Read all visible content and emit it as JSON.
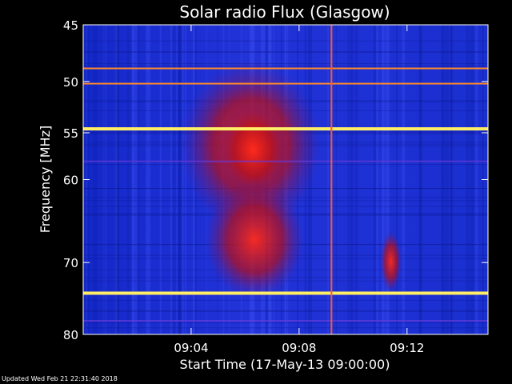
{
  "chart_data": {
    "type": "heatmap",
    "title": "Solar radio Flux (Glasgow)",
    "xlabel": "Start Time (17-May-13 09:00:00)",
    "ylabel": "Frequency [MHz]",
    "x_range_minutes": [
      0,
      15
    ],
    "y_range_mhz": [
      45,
      80
    ],
    "x_ticks": [
      {
        "minute": 4,
        "label": "09:04"
      },
      {
        "minute": 8,
        "label": "09:08"
      },
      {
        "minute": 12,
        "label": "09:12"
      }
    ],
    "y_ticks": [
      {
        "mhz": 45,
        "label": "45"
      },
      {
        "mhz": 50,
        "label": "50"
      },
      {
        "mhz": 55,
        "label": "55"
      },
      {
        "mhz": 60,
        "label": "60"
      },
      {
        "mhz": 70,
        "label": "70"
      },
      {
        "mhz": 80,
        "label": "80"
      }
    ],
    "colors": {
      "background": "#1b2fd6",
      "burst": "#c8101a",
      "band_hot": "#ffee66",
      "band_warm": "#ff8a2a",
      "line": "#ff5a2a"
    },
    "interference_bands_mhz": [
      {
        "mhz": 48.8,
        "intensity": "warm"
      },
      {
        "mhz": 50.2,
        "intensity": "warm"
      },
      {
        "mhz": 54.6,
        "intensity": "hot"
      },
      {
        "mhz": 74.1,
        "intensity": "hot"
      },
      {
        "mhz": 58.0,
        "intensity": "faint"
      },
      {
        "mhz": 78.0,
        "intensity": "faint"
      }
    ],
    "vertical_line_minute": 9.2,
    "burst_regions": [
      {
        "t_start": 3.6,
        "t_end": 8.8,
        "f_start": 48,
        "f_end": 66
      },
      {
        "t_start": 5.0,
        "t_end": 7.6,
        "f_start": 52,
        "f_end": 62
      },
      {
        "t_start": 4.5,
        "t_end": 8.2,
        "f_start": 60,
        "f_end": 75
      },
      {
        "t_start": 11.0,
        "t_end": 11.8,
        "f_start": 66,
        "f_end": 74
      }
    ]
  },
  "footer": {
    "updated": "Updated Wed Feb 21 22:31:40 2018"
  }
}
